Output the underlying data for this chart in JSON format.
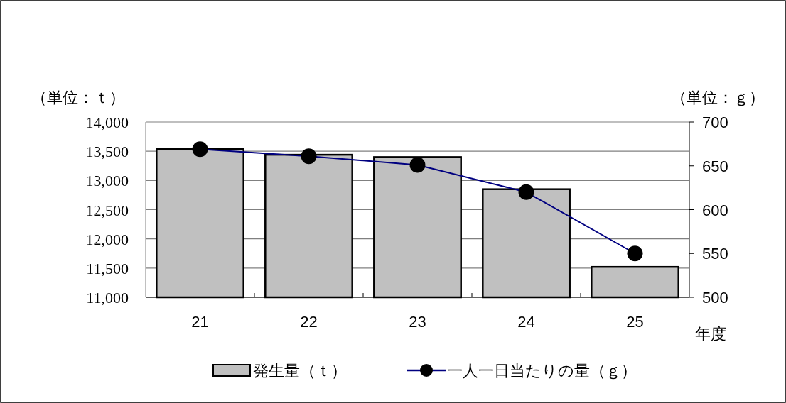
{
  "chart_data": {
    "type": "bar",
    "categories": [
      "21",
      "22",
      "23",
      "24",
      "25"
    ],
    "xlabel": "年度",
    "ylabel": "（単位：ｔ）",
    "y2label": "（単位：ｇ）",
    "series": [
      {
        "name": "発生量（ｔ）",
        "color": "#c0c0c0",
        "values": [
          13540,
          13440,
          13400,
          12850,
          11520
        ]
      },
      {
        "name": "一人一日当たりの量（ｇ）",
        "type": "line",
        "axis": "y2",
        "color": "#000080",
        "marker": "circle",
        "values": [
          669,
          661,
          651,
          620,
          550
        ]
      }
    ],
    "ylim": [
      11000,
      14000
    ],
    "yticks": [
      {
        "value": 11000,
        "label": "11,000"
      },
      {
        "value": 11500,
        "label": "11,500"
      },
      {
        "value": 12000,
        "label": "12,000"
      },
      {
        "value": 12500,
        "label": "12,500"
      },
      {
        "value": 13000,
        "label": "13,000"
      },
      {
        "value": 13500,
        "label": "13,500"
      },
      {
        "value": 14000,
        "label": "14,000"
      }
    ],
    "y2lim": [
      500,
      700
    ],
    "y2ticks": [
      500,
      550,
      600,
      650,
      700
    ],
    "grid": "y",
    "legend": "bottom"
  }
}
